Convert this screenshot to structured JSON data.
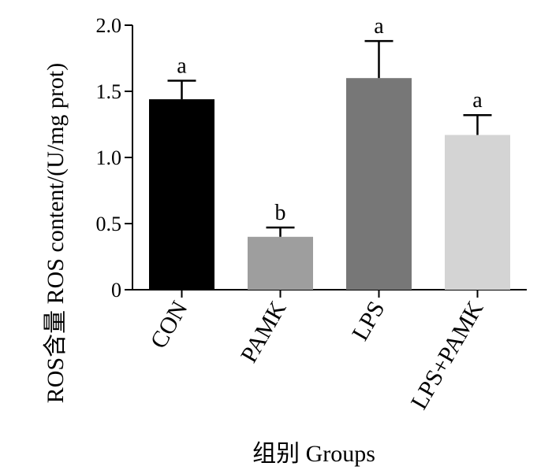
{
  "chart_data": {
    "type": "bar",
    "title": "",
    "xlabel": "组别 Groups",
    "ylabel": "ROS含量 ROS content/(U/mg prot)",
    "ylim": [
      0,
      2.0
    ],
    "yticks": [
      "0",
      "0.5",
      "1.0",
      "1.5",
      "2.0"
    ],
    "ytick_values": [
      0,
      0.5,
      1.0,
      1.5,
      2.0
    ],
    "categories": [
      "CON",
      "PAMK",
      "LPS",
      "LPS+PAMK"
    ],
    "values": [
      1.44,
      0.4,
      1.6,
      1.17
    ],
    "errors": [
      0.14,
      0.07,
      0.28,
      0.15
    ],
    "significance": [
      "a",
      "b",
      "a",
      "a"
    ],
    "colors": [
      "#000000",
      "#9e9e9e",
      "#777777",
      "#d4d4d4"
    ],
    "grid": false,
    "legend": "none"
  }
}
